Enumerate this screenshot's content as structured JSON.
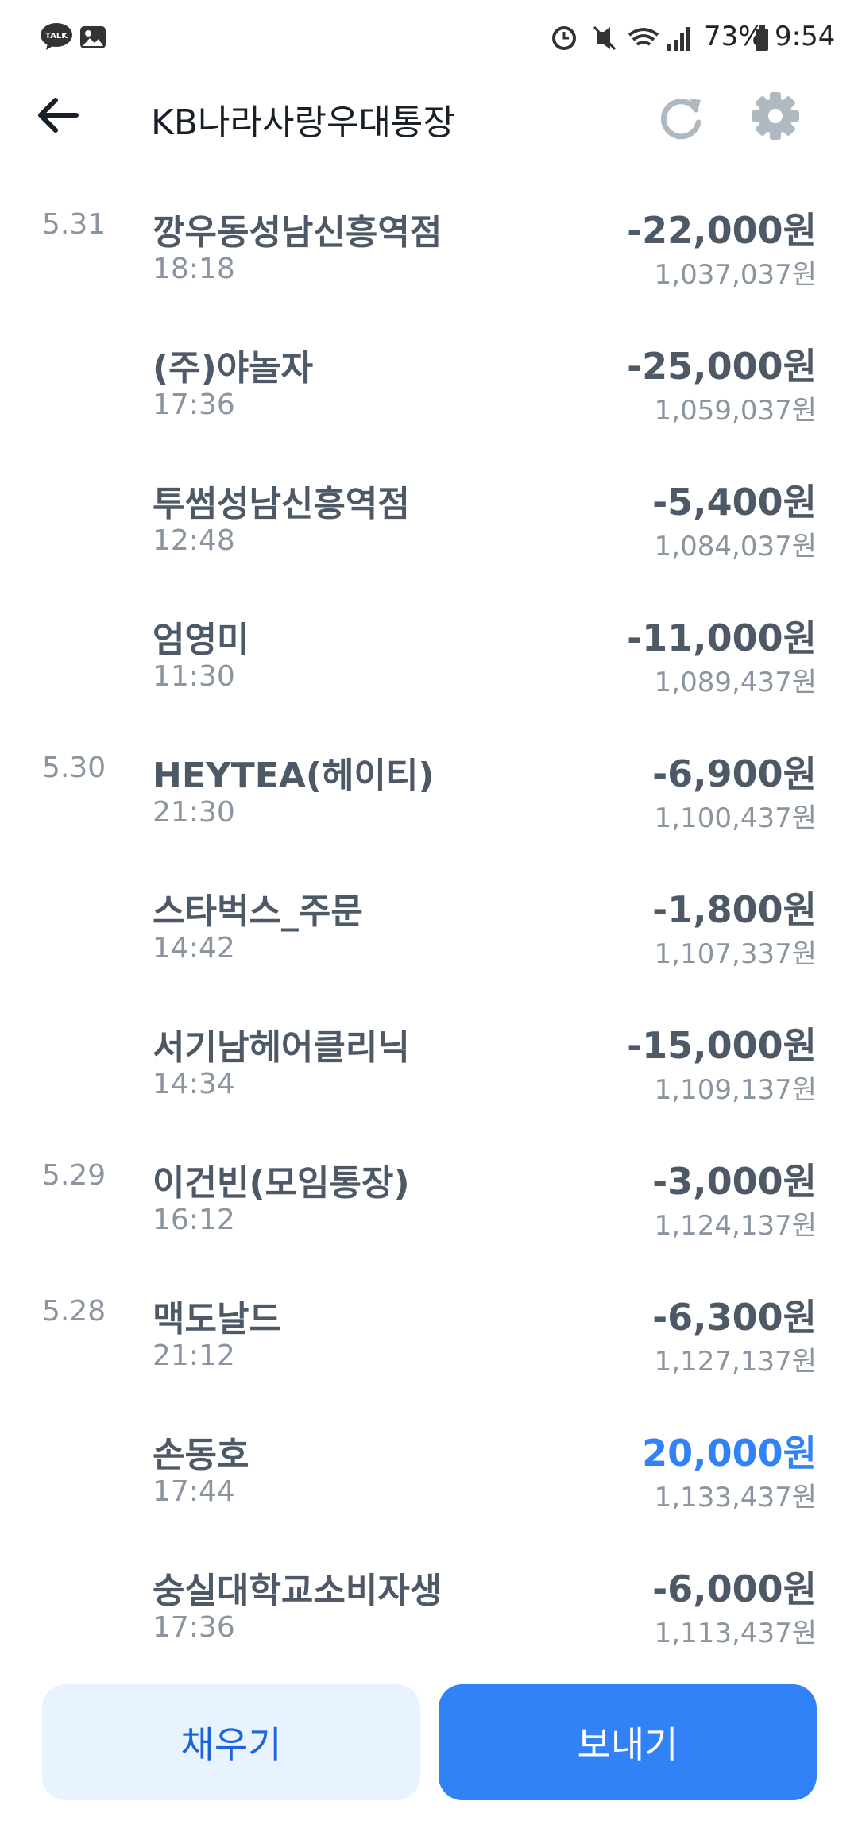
{
  "status_bar": {
    "app_icon": "TALK",
    "battery": "73%",
    "time": "9:54"
  },
  "header": {
    "title": "KB나라사랑우대통장"
  },
  "transactions": [
    {
      "date": "5.31",
      "name": "깡우동성남신흥역점",
      "time": "18:18",
      "amount": "-22,000원",
      "balance": "1,037,037원"
    },
    {
      "name": "(주)야놀자",
      "time": "17:36",
      "amount": "-25,000원",
      "balance": "1,059,037원"
    },
    {
      "name": "투썸성남신흥역점",
      "time": "12:48",
      "amount": "-5,400원",
      "balance": "1,084,037원"
    },
    {
      "name": "엄영미",
      "time": "11:30",
      "amount": "-11,000원",
      "balance": "1,089,437원"
    },
    {
      "date": "5.30",
      "name": "HEYTEA(헤이티)",
      "time": "21:30",
      "amount": "-6,900원",
      "balance": "1,100,437원"
    },
    {
      "name": "스타벅스_주문",
      "time": "14:42",
      "amount": "-1,800원",
      "balance": "1,107,337원"
    },
    {
      "name": "서기남헤어클리닉",
      "time": "14:34",
      "amount": "-15,000원",
      "balance": "1,109,137원"
    },
    {
      "date": "5.29",
      "name": "이건빈(모임통장)",
      "time": "16:12",
      "amount": "-3,000원",
      "balance": "1,124,137원"
    },
    {
      "date": "5.28",
      "name": "맥도날드",
      "time": "21:12",
      "amount": "-6,300원",
      "balance": "1,127,137원"
    },
    {
      "name": "손동호",
      "time": "17:44",
      "amount": "20,000원",
      "balance": "1,133,437원"
    },
    {
      "name": "숭실대학교소비자생",
      "time": "17:36",
      "amount": "-6,000원",
      "balance": "1,113,437원"
    }
  ],
  "buttons": [
    "채우기",
    "보내기"
  ]
}
